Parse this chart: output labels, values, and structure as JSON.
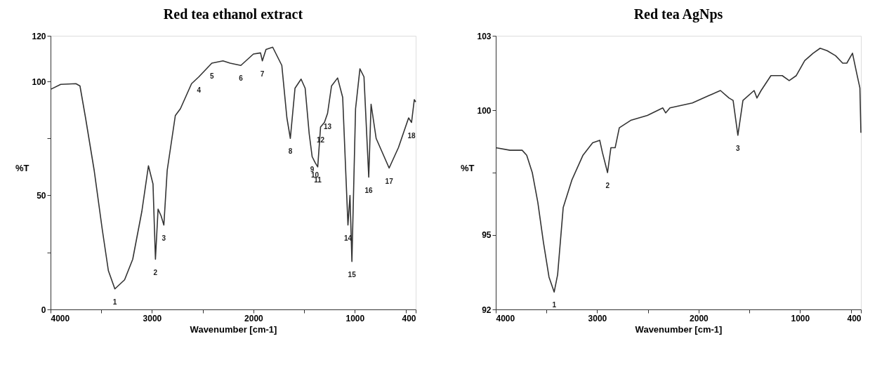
{
  "chart_data": [
    {
      "type": "line",
      "title": "Red tea ethanol extract",
      "xlabel": "Wavenumber [cm-1]",
      "ylabel": "%T",
      "xlim": [
        4000,
        400
      ],
      "ylim": [
        0,
        120
      ],
      "xticks": [
        4000,
        {
          "value": 3500,
          "label": null
        },
        3000,
        {
          "value": 2500,
          "label": null
        },
        2000,
        {
          "value": 1500,
          "label": null
        },
        1000,
        {
          "value": 500,
          "label": null
        },
        400
      ],
      "yticks": [
        0,
        {
          "value": 25,
          "label": null
        },
        50,
        {
          "value": 75,
          "label": null
        },
        100,
        120
      ],
      "x": [
        4000,
        3900,
        3750,
        3710,
        3655,
        3570,
        3490,
        3430,
        3366,
        3270,
        3190,
        3100,
        3035,
        2990,
        2966,
        2940,
        2910,
        2883,
        2850,
        2770,
        2720,
        2610,
        2538,
        2410,
        2300,
        2230,
        2124,
        2000,
        1930,
        1912,
        1876,
        1810,
        1720,
        1670,
        1636,
        1590,
        1530,
        1490,
        1450,
        1421,
        1393,
        1366,
        1338,
        1300,
        1269,
        1230,
        1170,
        1120,
        1068,
        1048,
        1029,
        993,
        950,
        910,
        863,
        840,
        790,
        662,
        570,
        470,
        441,
        414,
        400
      ],
      "series": [
        {
          "color": "#333333",
          "values": [
            96.5,
            98.7,
            99,
            98,
            84,
            61,
            35,
            17,
            9,
            13,
            22,
            43,
            63,
            55,
            22,
            44,
            41,
            37,
            61,
            85,
            88,
            99,
            102,
            108,
            109,
            108,
            107,
            112,
            112.5,
            109,
            114,
            115,
            107,
            84,
            75,
            97,
            101,
            97,
            77,
            67,
            64.5,
            62.5,
            80,
            82,
            86,
            98,
            101.5,
            93,
            37,
            50,
            21,
            88,
            105.5,
            102,
            58,
            90,
            75,
            62,
            71,
            84,
            82,
            92,
            91
          ]
        }
      ],
      "annotations": [
        {
          "text": "1",
          "x": 3366,
          "y": 9
        },
        {
          "text": "2",
          "x": 2966,
          "y": 22
        },
        {
          "text": "3",
          "x": 2883,
          "y": 37
        },
        {
          "text": "4",
          "x": 2538,
          "y": 102
        },
        {
          "text": "5",
          "x": 2410,
          "y": 108
        },
        {
          "text": "6",
          "x": 2124,
          "y": 107
        },
        {
          "text": "7",
          "x": 1912,
          "y": 109
        },
        {
          "text": "8",
          "x": 1636,
          "y": 75
        },
        {
          "text": "9",
          "x": 1421,
          "y": 67
        },
        {
          "text": "10",
          "x": 1393,
          "y": 64.5
        },
        {
          "text": "11",
          "x": 1366,
          "y": 62.5
        },
        {
          "text": "12",
          "x": 1338,
          "y": 80
        },
        {
          "text": "13",
          "x": 1269,
          "y": 86
        },
        {
          "text": "14",
          "x": 1068,
          "y": 37
        },
        {
          "text": "15",
          "x": 1029,
          "y": 21
        },
        {
          "text": "16",
          "x": 863,
          "y": 58
        },
        {
          "text": "17",
          "x": 662,
          "y": 62
        },
        {
          "text": "18",
          "x": 441,
          "y": 82
        }
      ]
    },
    {
      "type": "line",
      "title": "Red tea AgNps",
      "xlabel": "Wavenumber [cm-1]",
      "ylabel": "%T",
      "xlim": [
        4000,
        400
      ],
      "ylim": [
        92,
        103
      ],
      "xticks": [
        4000,
        {
          "value": 3500,
          "label": null
        },
        3000,
        {
          "value": 2500,
          "label": null
        },
        2000,
        {
          "value": 1500,
          "label": null
        },
        1000,
        {
          "value": 500,
          "label": null
        },
        400
      ],
      "yticks": [
        92,
        95,
        {
          "value": 97.5,
          "label": null
        },
        100,
        103
      ],
      "x": [
        4000,
        3860,
        3740,
        3695,
        3640,
        3585,
        3530,
        3475,
        3424,
        3390,
        3335,
        3250,
        3140,
        3045,
        2975,
        2948,
        2898,
        2865,
        2823,
        2782,
        2670,
        2505,
        2353,
        2325,
        2283,
        2062,
        1896,
        1785,
        1701,
        1660,
        1613,
        1563,
        1453,
        1425,
        1384,
        1287,
        1231,
        1176,
        1107,
        1037,
        954,
        871,
        802,
        733,
        650,
        580,
        539,
        483,
        442,
        410,
        400
      ],
      "series": [
        {
          "color": "#333333",
          "values": [
            98.5,
            98.4,
            98.4,
            98.2,
            97.5,
            96.3,
            94.7,
            93.3,
            92.7,
            93.4,
            96.1,
            97.2,
            98.2,
            98.7,
            98.8,
            98.3,
            97.5,
            98.5,
            98.5,
            99.3,
            99.6,
            99.8,
            100.1,
            99.9,
            100.1,
            100.3,
            100.6,
            100.8,
            100.5,
            100.4,
            99,
            100.4,
            100.8,
            100.5,
            100.8,
            101.4,
            101.4,
            101.4,
            101.2,
            101.4,
            102,
            102.3,
            102.5,
            102.4,
            102.2,
            101.9,
            101.9,
            102.3,
            101.5,
            100.9,
            99.1
          ]
        }
      ],
      "annotations": [
        {
          "text": "1",
          "x": 3424,
          "y": 92.7
        },
        {
          "text": "2",
          "x": 2898,
          "y": 97.5
        },
        {
          "text": "3",
          "x": 1613,
          "y": 99
        }
      ]
    }
  ]
}
